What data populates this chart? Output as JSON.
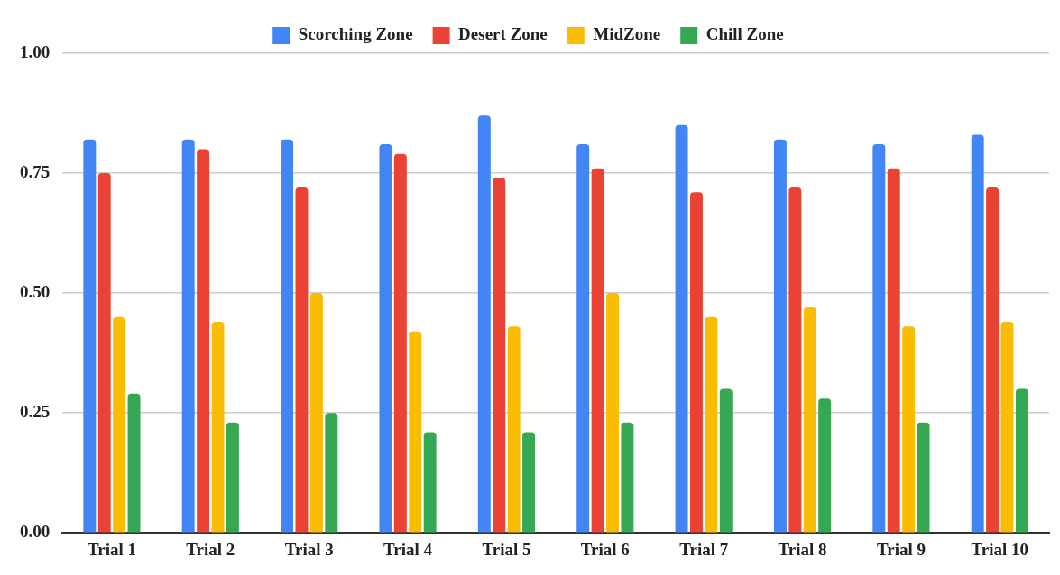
{
  "chart_data": {
    "type": "bar",
    "categories": [
      "Trial 1",
      "Trial 2",
      "Trial 3",
      "Trial 4",
      "Trial 5",
      "Trial 6",
      "Trial 7",
      "Trial 8",
      "Trial 9",
      "Trial 10"
    ],
    "series": [
      {
        "name": "Scorching Zone",
        "color": "#4285f4",
        "values": [
          0.82,
          0.82,
          0.82,
          0.81,
          0.87,
          0.81,
          0.85,
          0.82,
          0.81,
          0.83
        ]
      },
      {
        "name": "Desert Zone",
        "color": "#ea4335",
        "values": [
          0.75,
          0.8,
          0.72,
          0.79,
          0.74,
          0.76,
          0.71,
          0.72,
          0.76,
          0.72
        ]
      },
      {
        "name": "MidZone",
        "color": "#fbbc04",
        "values": [
          0.45,
          0.44,
          0.5,
          0.42,
          0.43,
          0.5,
          0.45,
          0.47,
          0.43,
          0.44
        ]
      },
      {
        "name": "Chill Zone",
        "color": "#34a853",
        "values": [
          0.29,
          0.23,
          0.25,
          0.21,
          0.21,
          0.23,
          0.3,
          0.28,
          0.23,
          0.3
        ]
      }
    ],
    "ylim": [
      0,
      1
    ],
    "yticks": [
      {
        "value": 0,
        "label": "0.00"
      },
      {
        "value": 0.25,
        "label": "0.25"
      },
      {
        "value": 0.5,
        "label": "0.50"
      },
      {
        "value": 0.75,
        "label": "0.75"
      },
      {
        "value": 1,
        "label": "1.00"
      }
    ],
    "grid": "y",
    "legend": "top"
  }
}
